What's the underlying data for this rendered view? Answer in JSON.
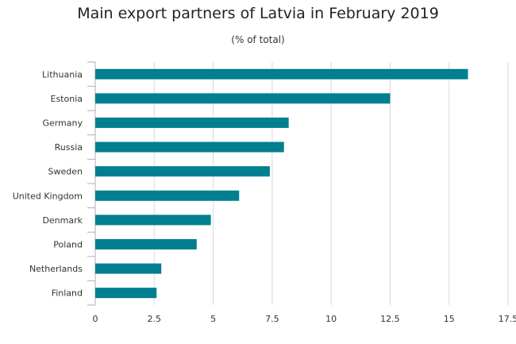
{
  "chart_data": {
    "type": "bar",
    "orientation": "horizontal",
    "title": "Main export partners of Latvia in February 2019",
    "subtitle": "(% of total)",
    "categories": [
      "Lithuania",
      "Estonia",
      "Germany",
      "Russia",
      "Sweden",
      "United Kingdom",
      "Denmark",
      "Poland",
      "Netherlands",
      "Finland"
    ],
    "values": [
      15.8,
      12.5,
      8.2,
      8.0,
      7.4,
      6.1,
      4.9,
      4.3,
      2.8,
      2.6
    ],
    "xlim": [
      0,
      17.5
    ],
    "xticks": [
      "0",
      "2.5",
      "5",
      "7.5",
      "10",
      "12.5",
      "15",
      "17.5"
    ],
    "grid": true,
    "bar_color": "#007f91",
    "grid_color": "#d9d9d9",
    "axis_color": "#b0b0b0"
  }
}
